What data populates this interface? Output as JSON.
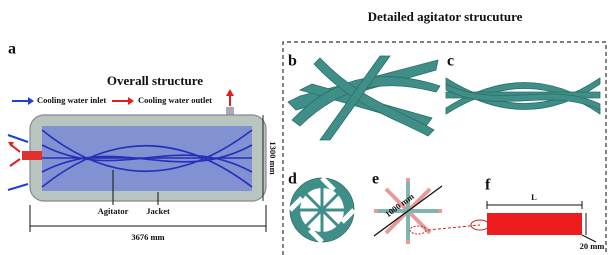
{
  "title": "Detailed agitator strucuture",
  "panel_a": {
    "label": "a",
    "title": "Overall structure",
    "legend": [
      "Cooling water inlet",
      "Cooling water outlet"
    ],
    "height_dim": "1300 mm",
    "agitator": "Agitator",
    "jacket": "Jacket",
    "length_dim": "3676 mm"
  },
  "panel_b": {
    "label": "b"
  },
  "panel_c": {
    "label": "c"
  },
  "panel_d": {
    "label": "d"
  },
  "panel_e": {
    "label": "e",
    "dim": "1000 mm"
  },
  "panel_f": {
    "label": "f",
    "length": "L",
    "thickness": "20 mm"
  }
}
